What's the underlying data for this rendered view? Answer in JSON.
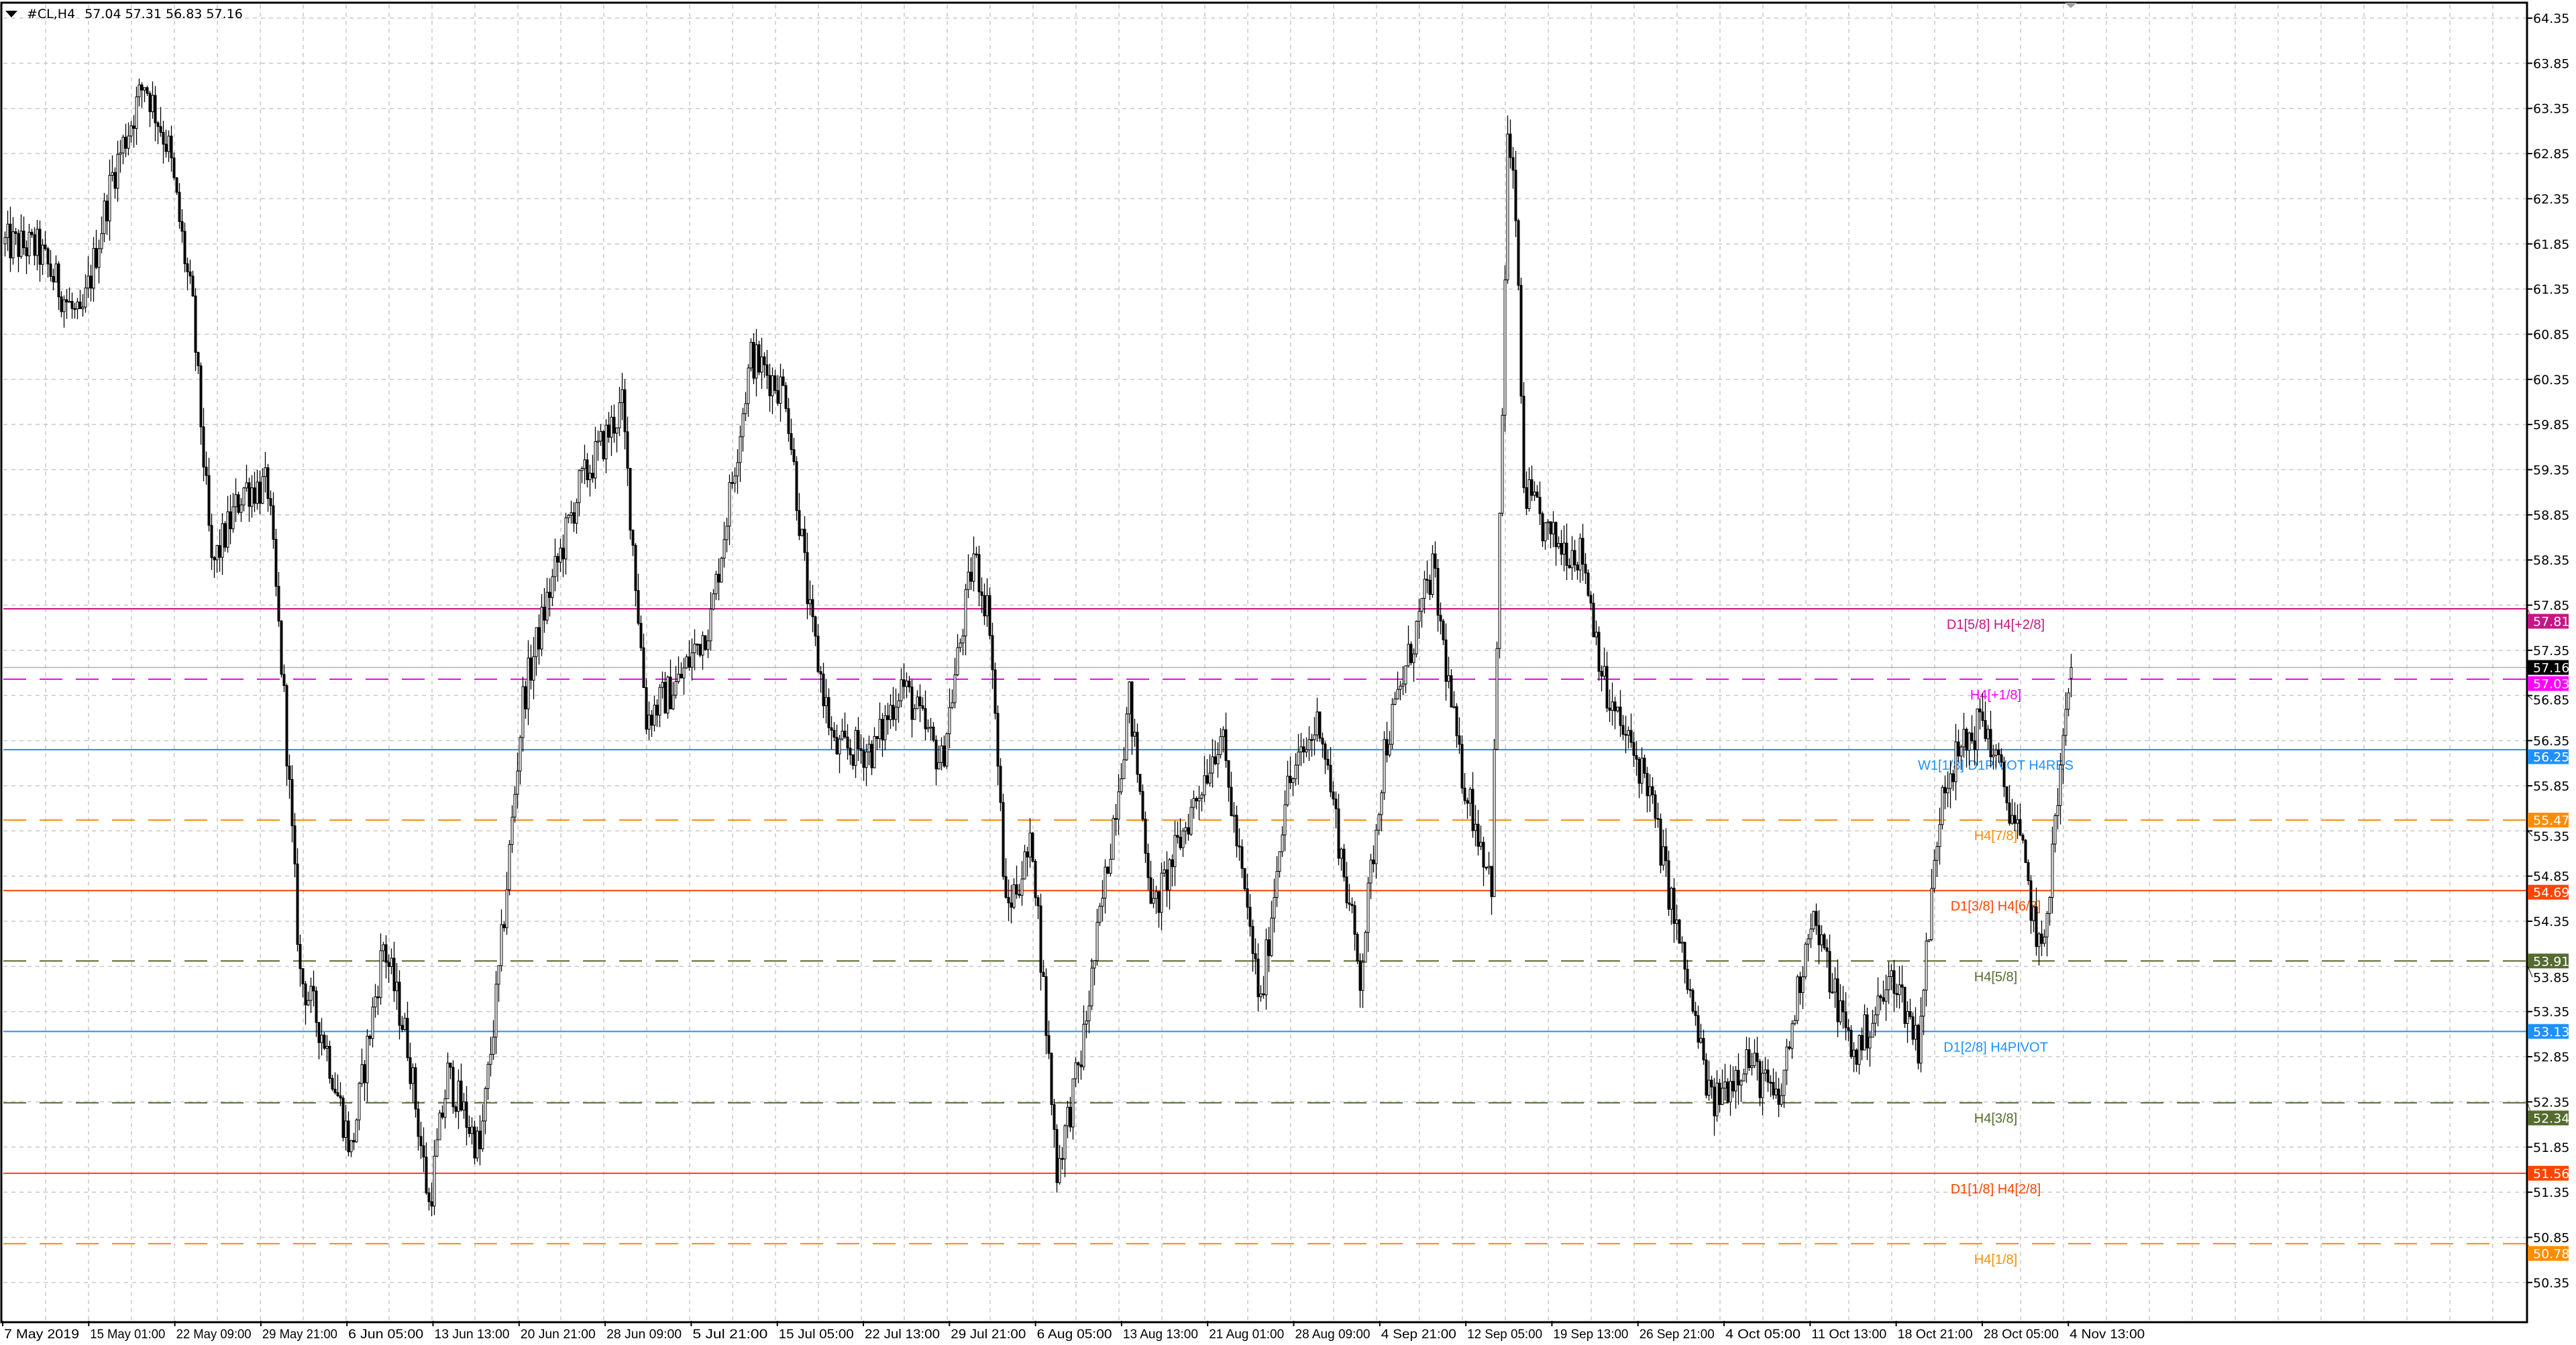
{
  "header": {
    "symbol": "#CL,H4",
    "open": "57.04",
    "high": "57.31",
    "low": "56.83",
    "close": "57.16"
  },
  "chart_data": {
    "type": "candlestick",
    "ylim": [
      50.35,
      64.35
    ],
    "y_ticks": [
      "64.35",
      "63.85",
      "63.35",
      "62.85",
      "62.35",
      "61.85",
      "61.35",
      "60.85",
      "60.35",
      "59.85",
      "59.35",
      "58.85",
      "58.35",
      "57.85",
      "57.35",
      "56.85",
      "56.35",
      "55.85",
      "55.35",
      "54.85",
      "54.35",
      "53.85",
      "53.35",
      "52.85",
      "52.35",
      "51.85",
      "51.35",
      "50.85",
      "50.35"
    ],
    "x_ticks": [
      "7 May 2019",
      "15 May 01:00",
      "22 May 09:00",
      "29 May 21:00",
      "6 Jun 05:00",
      "13 Jun 13:00",
      "20 Jun 21:00",
      "28 Jun 09:00",
      "5 Jul 21:00",
      "15 Jul 05:00",
      "22 Jul 13:00",
      "29 Jul 21:00",
      "6 Aug 05:00",
      "13 Aug 13:00",
      "21 Aug 01:00",
      "28 Aug 09:00",
      "4 Sep 21:00",
      "12 Sep 05:00",
      "19 Sep 13:00",
      "26 Sep 21:00",
      "4 Oct 05:00",
      "11 Oct 13:00",
      "18 Oct 21:00",
      "28 Oct 05:00",
      "4 Nov 13:00"
    ],
    "grid": true,
    "approx_close_path": [
      [
        0,
        61.85
      ],
      [
        12,
        61.8
      ],
      [
        28,
        60.95
      ],
      [
        40,
        62.6
      ],
      [
        52,
        63.65
      ],
      [
        61,
        62.9
      ],
      [
        70,
        61.1
      ],
      [
        77,
        58.25
      ],
      [
        89,
        59.15
      ],
      [
        98,
        59.15
      ],
      [
        104,
        56.8
      ],
      [
        110,
        53.75
      ],
      [
        119,
        53.05
      ],
      [
        129,
        51.8
      ],
      [
        141,
        54.1
      ],
      [
        150,
        53.0
      ],
      [
        158,
        51.2
      ],
      [
        165,
        52.65
      ],
      [
        177,
        51.8
      ],
      [
        184,
        53.75
      ],
      [
        193,
        56.8
      ],
      [
        202,
        57.9
      ],
      [
        214,
        59.15
      ],
      [
        230,
        60.05
      ],
      [
        239,
        56.6
      ],
      [
        251,
        57.0
      ],
      [
        263,
        57.7
      ],
      [
        278,
        60.6
      ],
      [
        291,
        60.2
      ],
      [
        300,
        57.7
      ],
      [
        309,
        56.25
      ],
      [
        324,
        56.25
      ],
      [
        334,
        57.0
      ],
      [
        349,
        56.1
      ],
      [
        361,
        58.4
      ],
      [
        367,
        57.7
      ],
      [
        373,
        54.45
      ],
      [
        383,
        55.2
      ],
      [
        392,
        51.6
      ],
      [
        401,
        52.85
      ],
      [
        410,
        54.8
      ],
      [
        419,
        56.8
      ],
      [
        428,
        54.45
      ],
      [
        453,
        56.45
      ],
      [
        468,
        53.4
      ],
      [
        477,
        55.75
      ],
      [
        490,
        56.6
      ],
      [
        505,
        53.75
      ],
      [
        514,
        56.25
      ],
      [
        532,
        58.25
      ],
      [
        542,
        56.1
      ],
      [
        554,
        54.8
      ],
      [
        558,
        60.0
      ],
      [
        560,
        63.0
      ],
      [
        563,
        62.2
      ],
      [
        566,
        59.15
      ],
      [
        575,
        58.6
      ],
      [
        588,
        58.4
      ],
      [
        597,
        56.8
      ],
      [
        612,
        55.9
      ],
      [
        624,
        54.1
      ],
      [
        636,
        52.3
      ],
      [
        649,
        52.85
      ],
      [
        661,
        52.3
      ],
      [
        673,
        54.45
      ],
      [
        689,
        52.85
      ],
      [
        704,
        53.75
      ],
      [
        713,
        53.0
      ],
      [
        722,
        55.9
      ],
      [
        737,
        56.6
      ],
      [
        750,
        55.35
      ],
      [
        759,
        53.9
      ],
      [
        768,
        56.6
      ],
      [
        770,
        57.16
      ]
    ],
    "current_price": {
      "value": 57.16,
      "label": "57.16",
      "color": "#000000"
    },
    "levels": [
      {
        "price": 57.81,
        "label": "57.81",
        "text": "D1[5/8] H4[+2/8]",
        "color": "#c71585",
        "style": "solid"
      },
      {
        "price": 57.03,
        "label": "57.03",
        "text": "H4[+1/8]",
        "color": "#ff00ff",
        "style": "dashed"
      },
      {
        "price": 56.25,
        "label": "56.25",
        "text": "W1[1/8] D1PIVOT H4RES",
        "color": "#1e90ff",
        "style": "solid"
      },
      {
        "price": 55.47,
        "label": "55.47",
        "text": "H4[7/8]",
        "color": "#ff8c00",
        "style": "dashed"
      },
      {
        "price": 54.69,
        "label": "54.69",
        "text": "D1[3/8] H4[6/8]",
        "color": "#ff4500",
        "style": "solid"
      },
      {
        "price": 53.91,
        "label": "53.91",
        "text": "H4[5/8]",
        "color": "#556b2f",
        "style": "dashed"
      },
      {
        "price": 53.13,
        "label": "53.13",
        "text": "D1[2/8] H4PIVOT",
        "color": "#1e90ff",
        "style": "solid"
      },
      {
        "price": 52.34,
        "label": "52.34",
        "text": "H4[3/8]",
        "color": "#556b2f",
        "style": "dashed"
      },
      {
        "price": 51.56,
        "label": "51.56",
        "text": "D1[1/8] H4[2/8]",
        "color": "#ff4500",
        "style": "solid"
      },
      {
        "price": 50.78,
        "label": "50.78",
        "text": "H4[1/8]",
        "color": "#ff8c00",
        "style": "dashed"
      }
    ]
  }
}
